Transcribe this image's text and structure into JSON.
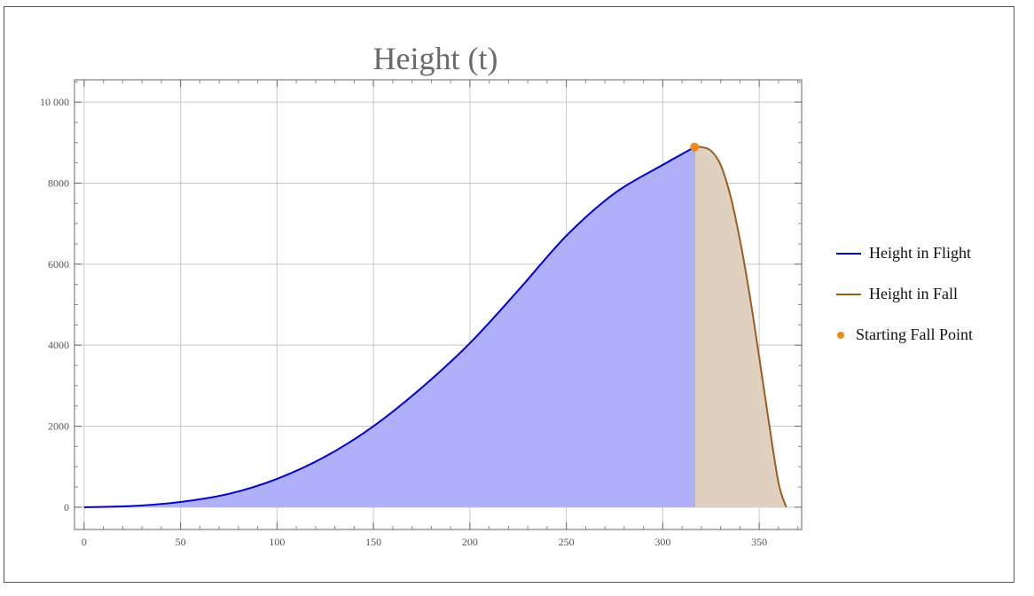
{
  "chart_data": {
    "type": "area",
    "title": "Height (t)",
    "xlabel": "",
    "ylabel": "",
    "xlim": [
      -5,
      372
    ],
    "ylim": [
      -550,
      10550
    ],
    "x_ticks": [
      0,
      50,
      100,
      150,
      200,
      250,
      300,
      350
    ],
    "y_ticks": [
      0,
      2000,
      4000,
      6000,
      8000,
      10000
    ],
    "y_tick_labels": [
      "0",
      "2000",
      "4000",
      "6000",
      "8000",
      "10 000"
    ],
    "grid": true,
    "legend_position": "right",
    "series": [
      {
        "name": "Height in Flight",
        "color": "#0000cc",
        "fill": "#b0b0fa",
        "x": [
          0,
          25,
          50,
          75,
          100,
          125,
          150,
          175,
          200,
          225,
          250,
          275,
          300,
          316.5
        ],
        "y": [
          0,
          30,
          130,
          330,
          700,
          1250,
          2000,
          2950,
          4050,
          5350,
          6700,
          7750,
          8450,
          8890
        ]
      },
      {
        "name": "Height in Fall",
        "color": "#9c5c1c",
        "fill": "#e0d0bf",
        "x": [
          316.5,
          320,
          325,
          330,
          335,
          340,
          345,
          350,
          355,
          360,
          364
        ],
        "y": [
          8890,
          8890,
          8800,
          8450,
          7700,
          6600,
          5250,
          3700,
          2100,
          600,
          0
        ]
      },
      {
        "name": "Starting Fall Point",
        "type": "point",
        "color": "#f08a18",
        "x": [
          316.5
        ],
        "y": [
          8890
        ]
      }
    ]
  }
}
